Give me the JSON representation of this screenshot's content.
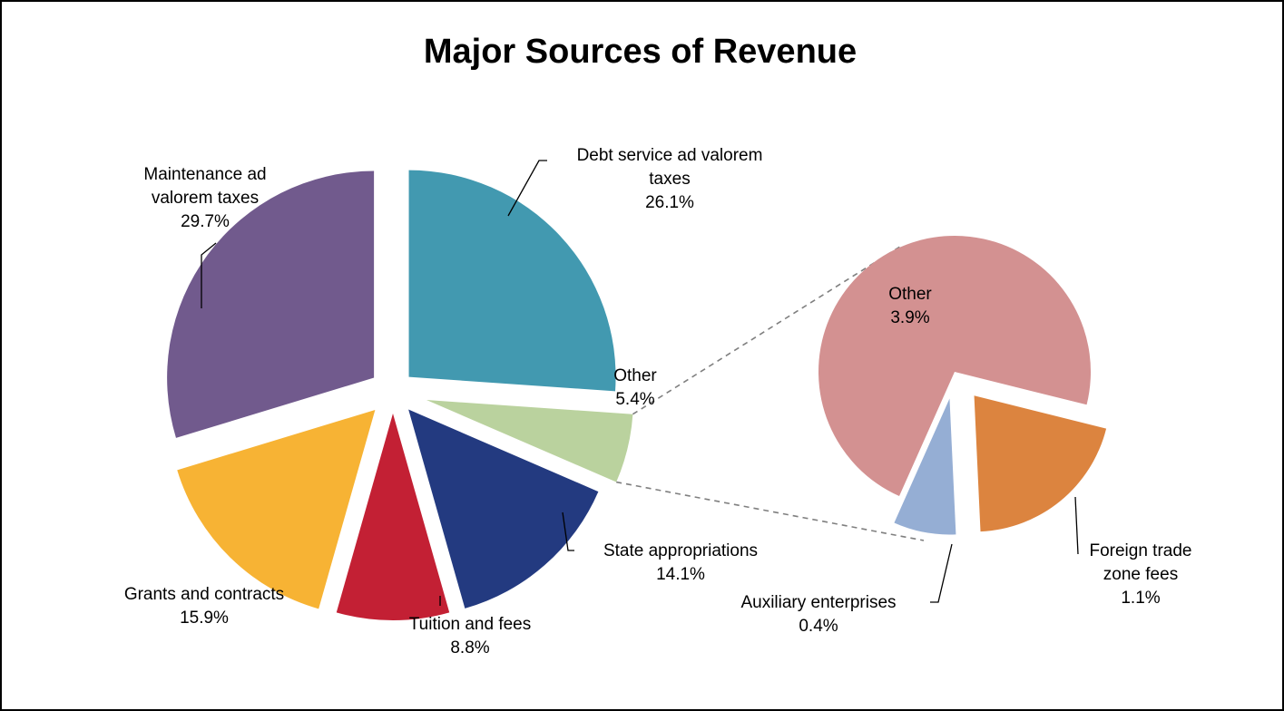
{
  "chart_data": {
    "type": "pie",
    "title": "Major Sources of Revenue",
    "main_pie": {
      "slices": [
        {
          "name": "Debt service ad valorem taxes",
          "label_lines": [
            "Debt service ad valorem",
            "taxes"
          ],
          "value": 26.1,
          "value_label": "26.1%",
          "color": "#4299B0"
        },
        {
          "name": "Other",
          "label_lines": [
            "Other"
          ],
          "value": 5.4,
          "value_label": "5.4%",
          "color": "#BAD29E"
        },
        {
          "name": "State appropriations",
          "label_lines": [
            "State appropriations"
          ],
          "value": 14.1,
          "value_label": "14.1%",
          "color": "#233A80"
        },
        {
          "name": "Tuition and fees",
          "label_lines": [
            "Tuition and fees"
          ],
          "value": 8.8,
          "value_label": "8.8%",
          "color": "#C32034"
        },
        {
          "name": "Grants and contracts",
          "label_lines": [
            "Grants and contracts"
          ],
          "value": 15.9,
          "value_label": "15.9%",
          "color": "#F7B334"
        },
        {
          "name": "Maintenance ad valorem taxes",
          "label_lines": [
            "Maintenance ad",
            "valorem taxes"
          ],
          "value": 29.7,
          "value_label": "29.7%",
          "color": "#715A8D"
        }
      ]
    },
    "breakout_pie": {
      "of": "Other",
      "slices": [
        {
          "name": "Other",
          "label_lines": [
            "Other"
          ],
          "value": 3.9,
          "value_label": "3.9%",
          "color": "#D39191"
        },
        {
          "name": "Foreign trade zone fees",
          "label_lines": [
            "Foreign trade",
            "zone fees"
          ],
          "value": 1.1,
          "value_label": "1.1%",
          "color": "#DC843F"
        },
        {
          "name": "Auxiliary enterprises",
          "label_lines": [
            "Auxiliary enterprises"
          ],
          "value": 0.4,
          "value_label": "0.4%",
          "color": "#95AED4"
        }
      ]
    }
  }
}
